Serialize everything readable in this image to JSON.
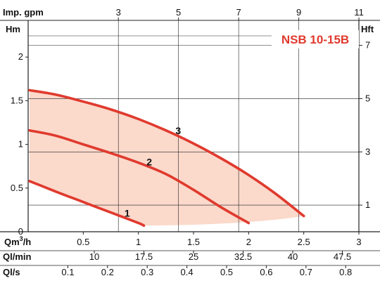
{
  "chart_data": {
    "type": "line",
    "title": "NSB 10-15B",
    "colors": {
      "curve": "#e03a2e",
      "band": "#fbd9cb",
      "grid": "#222222"
    },
    "axes": {
      "y_left": {
        "label": "Hm",
        "range": [
          0,
          2.42
        ],
        "ticks": [
          0,
          0.5,
          1,
          1.5,
          2
        ]
      },
      "y_right": {
        "label": "Hft",
        "ticks": [
          1,
          3,
          5,
          7
        ]
      },
      "x_top": {
        "label": "Imp. gpm",
        "ticks": [
          3,
          5,
          7,
          9,
          11
        ]
      },
      "x_main": {
        "label": "Qm",
        "label_sup": "3",
        "label_suffix": "/h",
        "range": [
          0,
          3
        ],
        "ticks": [
          0.5,
          1,
          1.5,
          2,
          2.5,
          3
        ]
      },
      "x_lmin": {
        "label": "Ql/min",
        "ticks": [
          10,
          17.5,
          25,
          32.5,
          40,
          47.5
        ]
      },
      "x_ls": {
        "label": "Ql/s",
        "ticks": [
          0.1,
          0.2,
          0.3,
          0.4,
          0.5,
          0.6,
          0.7,
          0.8
        ]
      }
    },
    "series": [
      {
        "name": "1",
        "x": [
          0,
          0.25,
          0.5,
          0.75,
          1.0,
          1.05
        ],
        "y": [
          0.58,
          0.46,
          0.34,
          0.22,
          0.1,
          0.07
        ]
      },
      {
        "name": "2",
        "x": [
          0,
          0.25,
          0.5,
          0.75,
          1.0,
          1.25,
          1.5,
          1.75,
          2.0
        ],
        "y": [
          1.16,
          1.1,
          1.0,
          0.9,
          0.79,
          0.66,
          0.48,
          0.28,
          0.1
        ]
      },
      {
        "name": "3",
        "x": [
          0,
          0.25,
          0.5,
          0.75,
          1.0,
          1.25,
          1.5,
          1.75,
          2.0,
          2.25,
          2.5
        ],
        "y": [
          1.62,
          1.57,
          1.49,
          1.4,
          1.29,
          1.16,
          1.01,
          0.84,
          0.65,
          0.43,
          0.18
        ]
      }
    ]
  }
}
